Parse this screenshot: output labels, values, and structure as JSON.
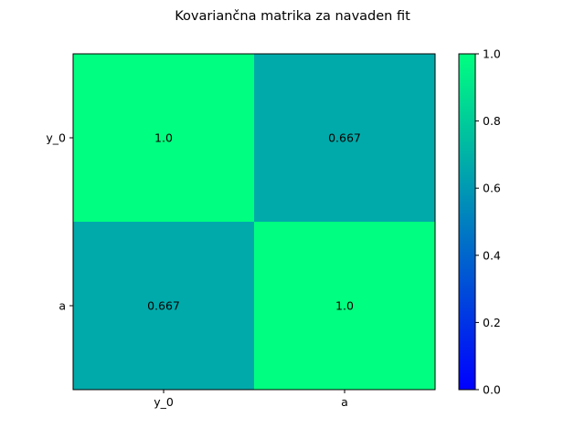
{
  "chart_data": {
    "type": "heatmap",
    "title": "Kovariančna matrika za navaden fit",
    "x_labels": [
      "y_0",
      "a"
    ],
    "y_labels": [
      "y_0",
      "a"
    ],
    "values": [
      [
        1.0,
        0.667
      ],
      [
        0.667,
        1.0
      ]
    ],
    "cell_labels": [
      [
        "1.0",
        "0.667"
      ],
      [
        "0.667",
        "1.0"
      ]
    ],
    "colormap": "winter",
    "colormap_stops": [
      "#0000ff",
      "#00ff80"
    ],
    "clim": [
      0.0,
      1.0
    ],
    "colorbar": {
      "position": "right",
      "ticks": [
        0.0,
        0.2,
        0.4,
        0.6,
        0.8,
        1.0
      ],
      "tick_labels": [
        "0.0",
        "0.2",
        "0.4",
        "0.6",
        "0.8",
        "1.0"
      ]
    },
    "grid": false
  }
}
